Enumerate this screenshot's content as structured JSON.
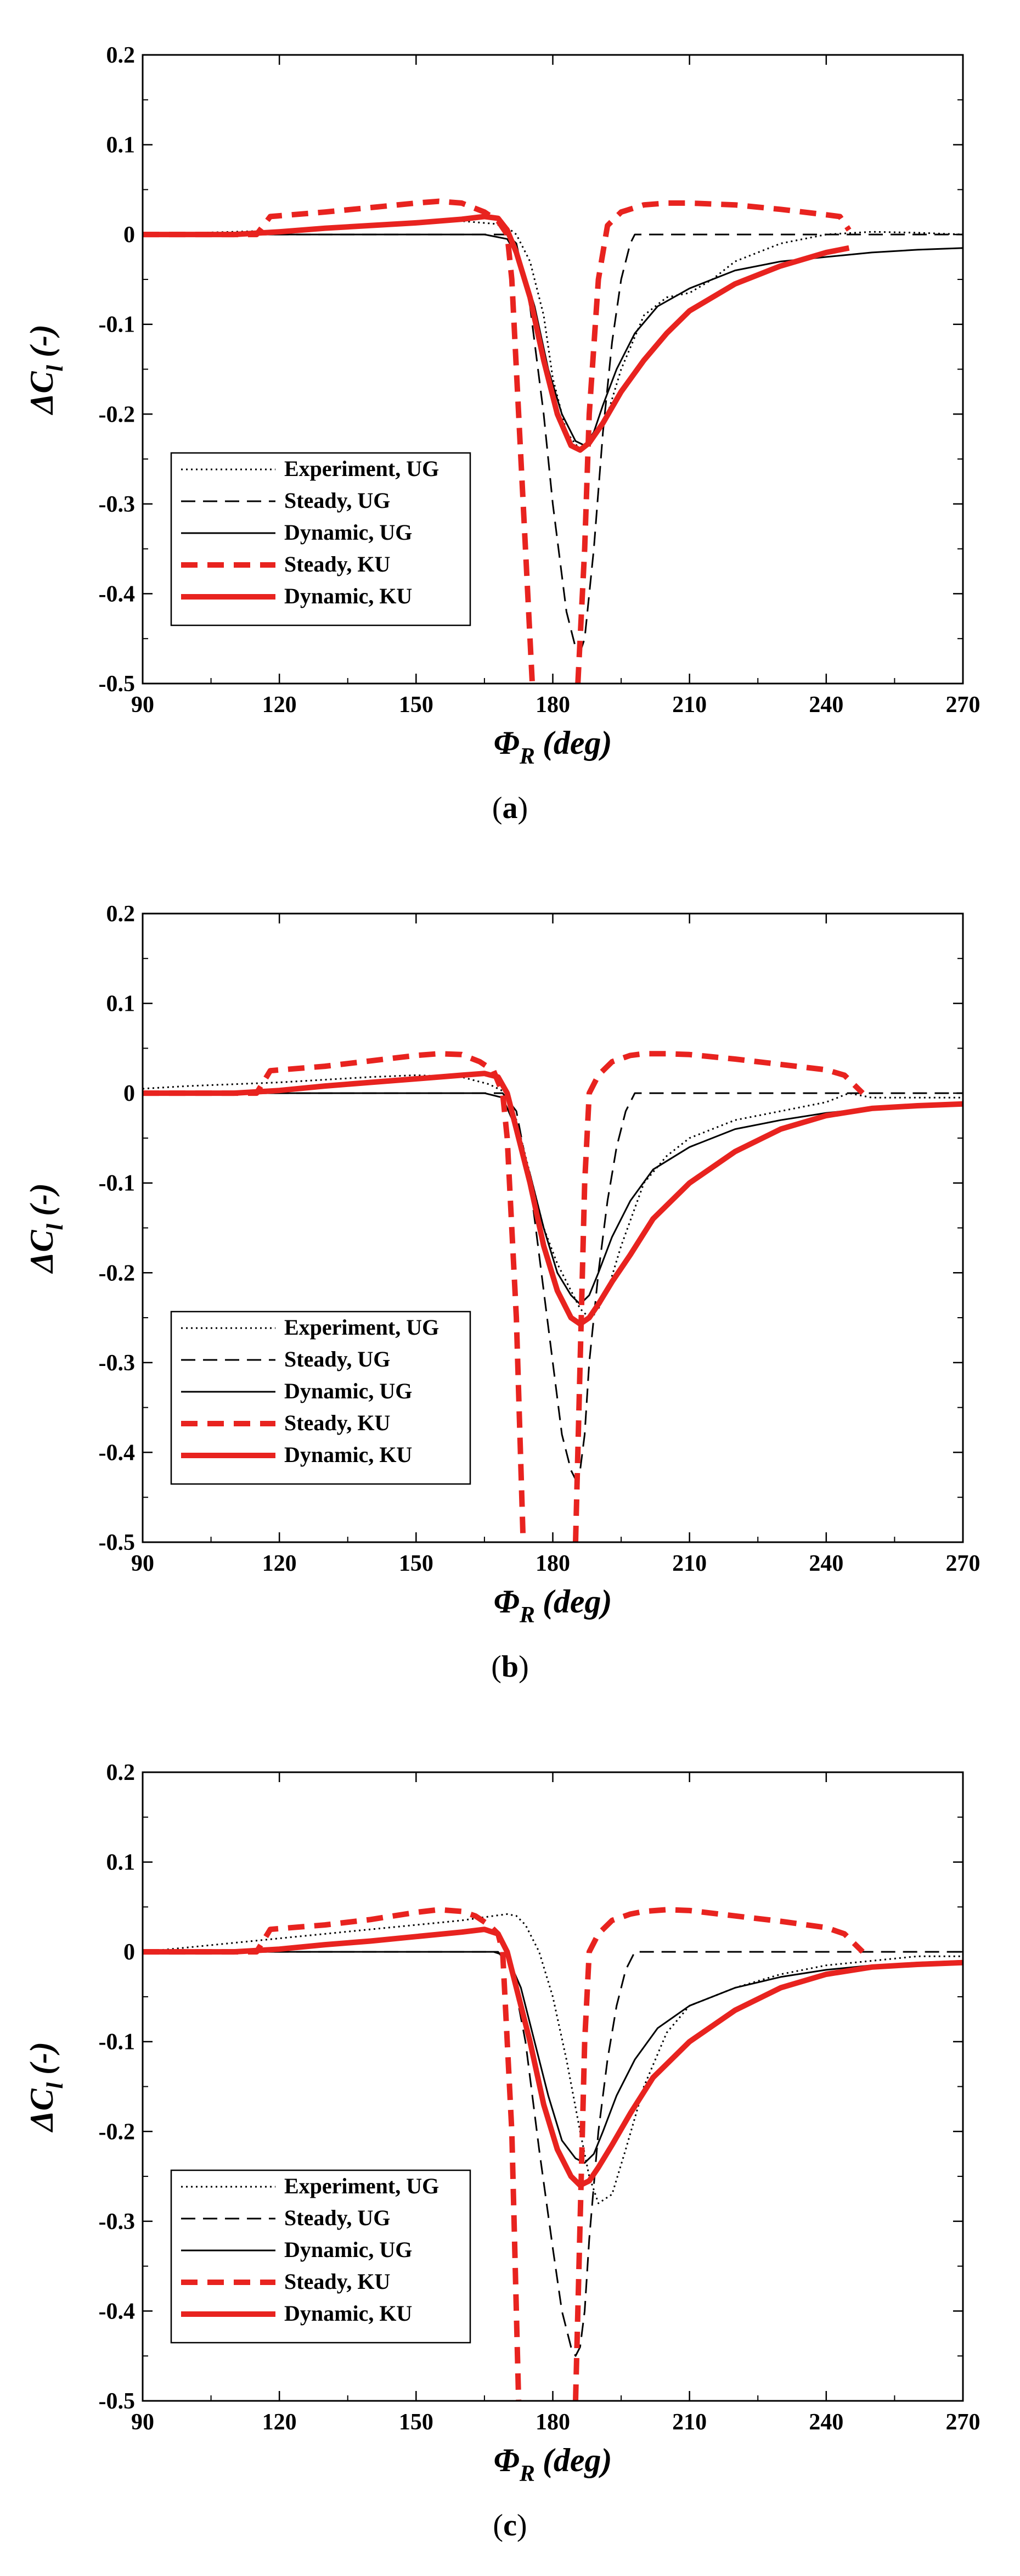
{
  "colors": {
    "black": "#000000",
    "red": "#e8231f"
  },
  "chart_data": [
    {
      "type": "line",
      "panel": "a",
      "caption": {
        "open": "(",
        "letter": "a",
        "close": ")"
      },
      "xlabel": "Φ",
      "xlabel_sub": "R",
      "xlabel_unit": "(deg)",
      "ylabel": "ΔC",
      "ylabel_sub": "l",
      "ylabel_unit": "(-)",
      "xlim": [
        90,
        270
      ],
      "ylim": [
        -0.5,
        0.2
      ],
      "xticks": [
        90,
        120,
        150,
        180,
        210,
        240,
        270
      ],
      "yticks": [
        0.2,
        0.1,
        0,
        -0.1,
        -0.2,
        -0.3,
        -0.4,
        -0.5
      ],
      "xtick_labels": [
        "90",
        "120",
        "150",
        "180",
        "210",
        "240",
        "270"
      ],
      "ytick_labels": [
        "0.2",
        "0.1",
        "0",
        "-0.1",
        "-0.2",
        "-0.3",
        "-0.4",
        "-0.5"
      ],
      "legend": {
        "placement": "bottom-left"
      },
      "series": [
        {
          "name": "Experiment, UG",
          "style": "dotted",
          "color": "#000000",
          "x": [
            90,
            110,
            130,
            150,
            160,
            167,
            170,
            172,
            175,
            178,
            180,
            183,
            186,
            188,
            190,
            192,
            195,
            200,
            205,
            210,
            215,
            220,
            230,
            240,
            250,
            260,
            270
          ],
          "y": [
            0,
            0.003,
            0.006,
            0.012,
            0.015,
            0.012,
            0.008,
            0,
            -0.03,
            -0.09,
            -0.16,
            -0.22,
            -0.24,
            -0.235,
            -0.22,
            -0.2,
            -0.15,
            -0.09,
            -0.07,
            -0.065,
            -0.05,
            -0.03,
            -0.01,
            0,
            0.003,
            0.002,
            0
          ]
        },
        {
          "name": "Steady, UG",
          "style": "dashed",
          "color": "#000000",
          "x": [
            90,
            165,
            170,
            172,
            175,
            178,
            180,
            183,
            185,
            186,
            187,
            189,
            191,
            193,
            195,
            197,
            198,
            200,
            210,
            230,
            250,
            270
          ],
          "y": [
            0,
            0,
            0,
            -0.01,
            -0.08,
            -0.2,
            -0.3,
            -0.42,
            -0.46,
            -0.465,
            -0.45,
            -0.35,
            -0.22,
            -0.12,
            -0.05,
            -0.01,
            0,
            0,
            0,
            0,
            0,
            0
          ]
        },
        {
          "name": "Dynamic, UG",
          "style": "solid",
          "color": "#000000",
          "x": [
            90,
            150,
            165,
            170,
            173,
            176,
            179,
            182,
            185,
            187,
            189,
            191,
            194,
            198,
            203,
            210,
            220,
            230,
            240,
            250,
            260,
            270
          ],
          "y": [
            0,
            0,
            0,
            -0.005,
            -0.03,
            -0.08,
            -0.15,
            -0.2,
            -0.23,
            -0.235,
            -0.22,
            -0.19,
            -0.15,
            -0.11,
            -0.08,
            -0.06,
            -0.04,
            -0.03,
            -0.025,
            -0.02,
            -0.017,
            -0.015
          ]
        },
        {
          "name": "Steady, KU",
          "style": "dashed-thick",
          "color": "#e8231f",
          "x": [
            90,
            115,
            118,
            130,
            140,
            150,
            155,
            160,
            165,
            168,
            170,
            171,
            172,
            174,
            175.5,
            null,
            185.5,
            187,
            188,
            190,
            192,
            195,
            200,
            205,
            210,
            220,
            230,
            240,
            243,
            245
          ],
          "y": [
            0,
            0,
            0.02,
            0.025,
            0.03,
            0.035,
            0.037,
            0.035,
            0.025,
            0.015,
            0,
            -0.05,
            -0.15,
            -0.35,
            -0.5,
            null,
            -0.5,
            -0.35,
            -0.2,
            -0.05,
            0.01,
            0.025,
            0.033,
            0.035,
            0.035,
            0.033,
            0.028,
            0.022,
            0.02,
            0.005
          ]
        },
        {
          "name": "Dynamic, KU",
          "style": "solid-thick",
          "color": "#e8231f",
          "x": [
            90,
            110,
            120,
            130,
            140,
            150,
            160,
            165,
            168,
            170,
            172,
            175,
            178,
            181,
            184,
            186,
            188,
            191,
            195,
            200,
            205,
            210,
            220,
            230,
            240,
            245
          ],
          "y": [
            0,
            0,
            0.003,
            0.007,
            0.01,
            0.013,
            0.017,
            0.02,
            0.018,
            0.005,
            -0.02,
            -0.07,
            -0.14,
            -0.2,
            -0.235,
            -0.24,
            -0.232,
            -0.21,
            -0.175,
            -0.14,
            -0.11,
            -0.085,
            -0.055,
            -0.035,
            -0.02,
            -0.015
          ]
        }
      ]
    },
    {
      "type": "line",
      "panel": "b",
      "caption": {
        "open": "(",
        "letter": "b",
        "close": ")"
      },
      "xlabel": "Φ",
      "xlabel_sub": "R",
      "xlabel_unit": "(deg)",
      "ylabel": "ΔC",
      "ylabel_sub": "l",
      "ylabel_unit": "(-)",
      "xlim": [
        90,
        270
      ],
      "ylim": [
        -0.5,
        0.2
      ],
      "xticks": [
        90,
        120,
        150,
        180,
        210,
        240,
        270
      ],
      "yticks": [
        0.2,
        0.1,
        0,
        -0.1,
        -0.2,
        -0.3,
        -0.4,
        -0.5
      ],
      "xtick_labels": [
        "90",
        "120",
        "150",
        "180",
        "210",
        "240",
        "270"
      ],
      "ytick_labels": [
        "0.2",
        "0.1",
        "0",
        "-0.1",
        "-0.2",
        "-0.3",
        "-0.4",
        "-0.5"
      ],
      "legend": {
        "placement": "bottom-left"
      },
      "series": [
        {
          "name": "Experiment, UG",
          "style": "dotted",
          "color": "#000000",
          "x": [
            90,
            100,
            110,
            120,
            130,
            140,
            150,
            160,
            166,
            170,
            172,
            175,
            178,
            181,
            184,
            186,
            188,
            190,
            192,
            195,
            200,
            205,
            210,
            220,
            230,
            240,
            245,
            250,
            260,
            270
          ],
          "y": [
            0.005,
            0.008,
            0.01,
            0.012,
            0.015,
            0.018,
            0.02,
            0.018,
            0.01,
            0,
            -0.03,
            -0.09,
            -0.15,
            -0.19,
            -0.22,
            -0.24,
            -0.25,
            -0.24,
            -0.22,
            -0.17,
            -0.1,
            -0.07,
            -0.05,
            -0.03,
            -0.02,
            -0.01,
            0,
            -0.005,
            -0.005,
            -0.005
          ]
        },
        {
          "name": "Steady, UG",
          "style": "dashed",
          "color": "#000000",
          "x": [
            90,
            165,
            169,
            172,
            175,
            178,
            180,
            182,
            184,
            185,
            186,
            187,
            188,
            190,
            192,
            194,
            196,
            198,
            200,
            210,
            230,
            250,
            270
          ],
          "y": [
            0,
            0,
            0,
            -0.02,
            -0.1,
            -0.22,
            -0.3,
            -0.38,
            -0.42,
            -0.43,
            -0.42,
            -0.38,
            -0.3,
            -0.2,
            -0.12,
            -0.06,
            -0.02,
            0,
            0,
            0,
            0,
            0,
            0
          ]
        },
        {
          "name": "Dynamic, UG",
          "style": "solid",
          "color": "#000000",
          "x": [
            90,
            150,
            165,
            169,
            172,
            175,
            178,
            181,
            184,
            186,
            188,
            190,
            193,
            197,
            202,
            210,
            220,
            230,
            240,
            250,
            260,
            270
          ],
          "y": [
            0,
            0,
            0,
            -0.005,
            -0.04,
            -0.09,
            -0.15,
            -0.2,
            -0.225,
            -0.235,
            -0.225,
            -0.2,
            -0.16,
            -0.12,
            -0.085,
            -0.06,
            -0.04,
            -0.03,
            -0.022,
            -0.017,
            -0.014,
            -0.012
          ]
        },
        {
          "name": "Steady, KU",
          "style": "dashed-thick",
          "color": "#e8231f",
          "x": [
            90,
            115,
            118,
            130,
            140,
            150,
            155,
            160,
            164,
            167,
            169,
            170,
            172,
            173.5,
            null,
            185,
            186,
            187,
            188,
            190,
            193,
            197,
            200,
            205,
            210,
            220,
            230,
            240,
            244,
            246,
            248
          ],
          "y": [
            0,
            0,
            0.025,
            0.03,
            0.036,
            0.042,
            0.044,
            0.043,
            0.035,
            0.025,
            0,
            -0.05,
            -0.25,
            -0.5,
            null,
            -0.5,
            -0.3,
            -0.1,
            0,
            0.02,
            0.035,
            0.042,
            0.044,
            0.044,
            0.043,
            0.038,
            0.032,
            0.026,
            0.02,
            0.01,
            0
          ]
        },
        {
          "name": "Dynamic, KU",
          "style": "solid-thick",
          "color": "#e8231f",
          "x": [
            90,
            110,
            120,
            130,
            140,
            150,
            160,
            165,
            168,
            170,
            172,
            175,
            178,
            181,
            184,
            186,
            188,
            190,
            193,
            197,
            202,
            210,
            220,
            230,
            240,
            250,
            260,
            270
          ],
          "y": [
            0,
            0,
            0.003,
            0.008,
            0.012,
            0.016,
            0.02,
            0.022,
            0.018,
            0,
            -0.04,
            -0.1,
            -0.17,
            -0.22,
            -0.25,
            -0.257,
            -0.25,
            -0.235,
            -0.21,
            -0.18,
            -0.14,
            -0.1,
            -0.065,
            -0.04,
            -0.025,
            -0.017,
            -0.014,
            -0.012
          ]
        }
      ]
    },
    {
      "type": "line",
      "panel": "c",
      "caption": {
        "open": "(",
        "letter": "c",
        "close": ")"
      },
      "xlabel": "Φ",
      "xlabel_sub": "R",
      "xlabel_unit": "(deg)",
      "ylabel": "ΔC",
      "ylabel_sub": "l",
      "ylabel_unit": "(-)",
      "xlim": [
        90,
        270
      ],
      "ylim": [
        -0.5,
        0.2
      ],
      "xticks": [
        90,
        120,
        150,
        180,
        210,
        240,
        270
      ],
      "yticks": [
        0.2,
        0.1,
        0,
        -0.1,
        -0.2,
        -0.3,
        -0.4,
        -0.5
      ],
      "xtick_labels": [
        "90",
        "120",
        "150",
        "180",
        "210",
        "240",
        "270"
      ],
      "ytick_labels": [
        "0.2",
        "0.1",
        "0",
        "-0.1",
        "-0.2",
        "-0.3",
        "-0.4",
        "-0.5"
      ],
      "legend": {
        "placement": "bottom-left"
      },
      "series": [
        {
          "name": "Experiment, UG",
          "style": "dotted",
          "color": "#000000",
          "x": [
            90,
            100,
            110,
            120,
            130,
            140,
            150,
            160,
            167,
            170,
            172,
            174,
            177,
            180,
            183,
            186,
            188,
            190,
            193,
            196,
            200,
            205,
            210,
            220,
            230,
            240,
            250,
            260,
            270
          ],
          "y": [
            0,
            0.005,
            0.01,
            0.015,
            0.02,
            0.025,
            0.03,
            0.035,
            0.04,
            0.042,
            0.04,
            0.03,
            0,
            -0.05,
            -0.12,
            -0.2,
            -0.25,
            -0.28,
            -0.27,
            -0.22,
            -0.15,
            -0.09,
            -0.06,
            -0.04,
            -0.025,
            -0.015,
            -0.01,
            -0.005,
            -0.005
          ]
        },
        {
          "name": "Steady, UG",
          "style": "dashed",
          "color": "#000000",
          "x": [
            90,
            165,
            168,
            171,
            174,
            177,
            180,
            182,
            184,
            185,
            186,
            187,
            188,
            190,
            192,
            194,
            196,
            198,
            200,
            210,
            230,
            250,
            270
          ],
          "y": [
            0,
            0,
            0,
            -0.02,
            -0.1,
            -0.22,
            -0.33,
            -0.4,
            -0.44,
            -0.45,
            -0.44,
            -0.4,
            -0.32,
            -0.2,
            -0.12,
            -0.06,
            -0.02,
            0,
            0,
            0,
            0,
            0,
            0
          ]
        },
        {
          "name": "Dynamic, UG",
          "style": "solid",
          "color": "#000000",
          "x": [
            90,
            150,
            167,
            170,
            173,
            176,
            179,
            182,
            185,
            187,
            189,
            191,
            194,
            198,
            203,
            210,
            220,
            230,
            240,
            250,
            260,
            270
          ],
          "y": [
            0,
            0,
            0,
            -0.005,
            -0.04,
            -0.1,
            -0.16,
            -0.21,
            -0.23,
            -0.235,
            -0.225,
            -0.2,
            -0.16,
            -0.12,
            -0.085,
            -0.06,
            -0.04,
            -0.028,
            -0.02,
            -0.015,
            -0.012,
            -0.01
          ]
        },
        {
          "name": "Steady, KU",
          "style": "dashed-thick",
          "color": "#e8231f",
          "x": [
            90,
            115,
            118,
            130,
            140,
            150,
            155,
            160,
            163,
            166,
            168,
            169,
            171,
            172.5,
            null,
            185,
            186,
            187,
            188,
            190,
            193,
            197,
            200,
            205,
            210,
            220,
            230,
            240,
            244,
            246,
            248
          ],
          "y": [
            0,
            0,
            0.025,
            0.03,
            0.036,
            0.044,
            0.047,
            0.045,
            0.04,
            0.03,
            0.02,
            0,
            -0.2,
            -0.5,
            null,
            -0.5,
            -0.3,
            -0.1,
            0,
            0.02,
            0.035,
            0.042,
            0.045,
            0.047,
            0.046,
            0.04,
            0.034,
            0.027,
            0.02,
            0.01,
            0
          ]
        },
        {
          "name": "Dynamic, KU",
          "style": "solid-thick",
          "color": "#e8231f",
          "x": [
            90,
            110,
            120,
            130,
            140,
            150,
            160,
            165,
            168,
            170,
            172,
            175,
            178,
            181,
            184,
            186,
            188,
            190,
            193,
            197,
            202,
            210,
            220,
            230,
            240,
            250,
            260,
            270
          ],
          "y": [
            0,
            0,
            0.003,
            0.008,
            0.012,
            0.017,
            0.022,
            0.025,
            0.02,
            0,
            -0.04,
            -0.1,
            -0.17,
            -0.22,
            -0.25,
            -0.26,
            -0.255,
            -0.24,
            -0.215,
            -0.18,
            -0.14,
            -0.1,
            -0.065,
            -0.04,
            -0.025,
            -0.017,
            -0.014,
            -0.012
          ]
        }
      ]
    }
  ]
}
